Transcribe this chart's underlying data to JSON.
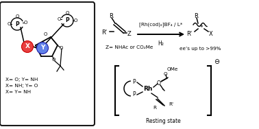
{
  "bg_color": "#ffffff",
  "box_color": "#1a1a1a",
  "red_circle_color": "#e84040",
  "blue_circle_color": "#6080e8",
  "label_xy": "X= O; Y= NH\nX= NH; Y= O\nX= Y= NH",
  "reaction_arrow_label_top": "[Rh(cod)₂]BF₄ / L*",
  "reaction_arrow_label_bottom": "H₂",
  "z_label": "Z= NHAc or CO₂Me",
  "ee_label": "ee’s up to >99%",
  "resting_label": "Resting state",
  "bracket_minus": "⊖"
}
